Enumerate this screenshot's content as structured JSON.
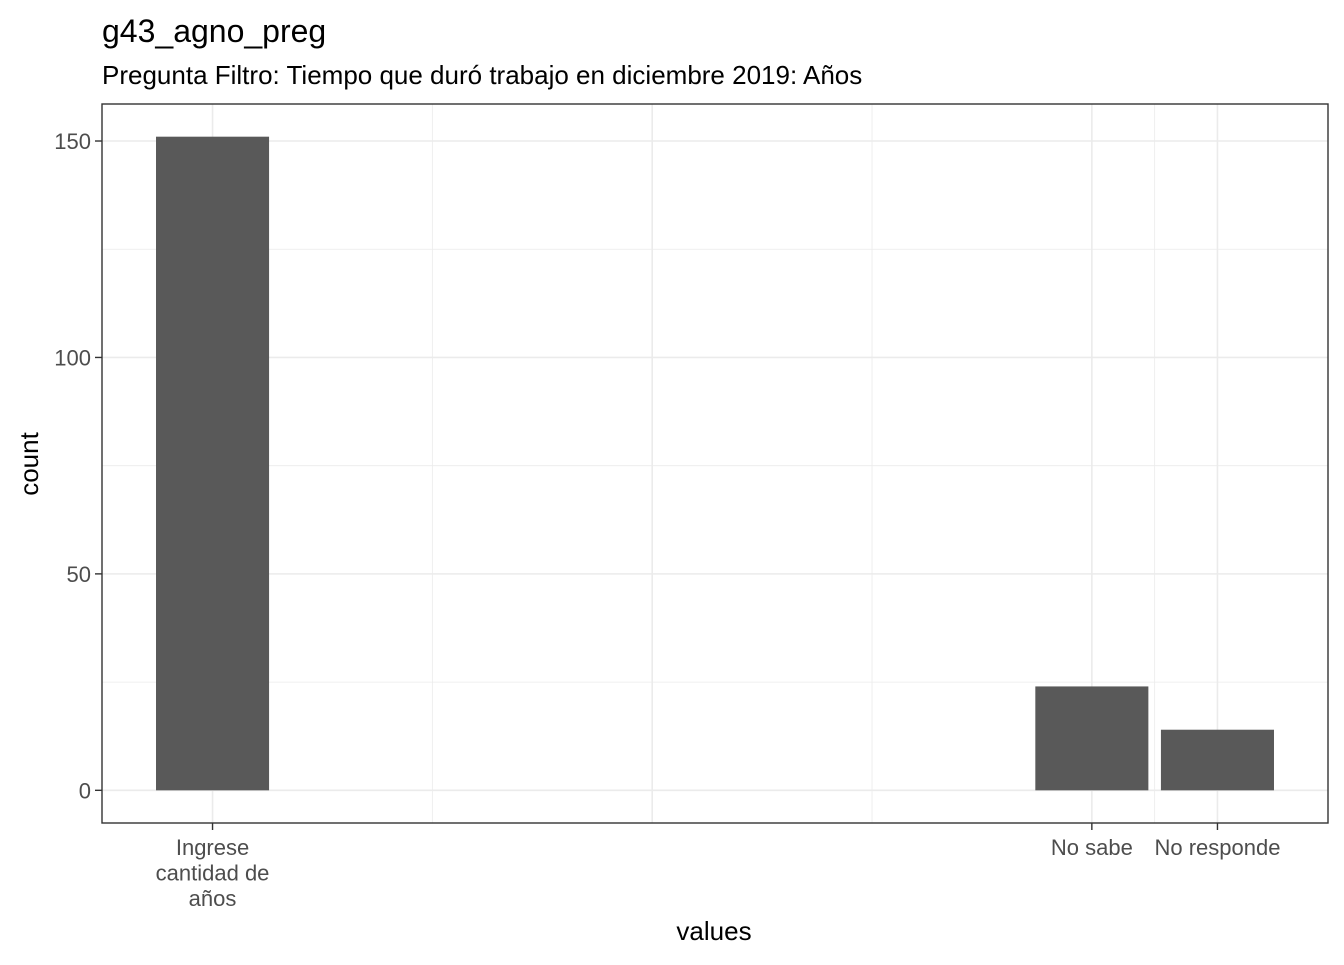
{
  "chart_data": {
    "type": "bar",
    "title": "g43_agno_preg",
    "subtitle": "Pregunta Filtro: Tiempo que duró trabajo en diciembre 2019: Años",
    "xlabel": "values",
    "ylabel": "count",
    "categories": [
      [
        "Ingrese",
        "cantidad de",
        "años"
      ],
      [
        "No sabe"
      ],
      [
        "No responde"
      ]
    ],
    "x_positions": [
      0,
      7,
      8
    ],
    "values": [
      151,
      24,
      14
    ],
    "xlim": [
      -0.88,
      8.88
    ],
    "ylim": [
      -7.55,
      158.55
    ],
    "yticks": [
      0,
      50,
      100,
      150
    ],
    "ytick_labels": [
      "0",
      "50",
      "100",
      "150"
    ],
    "x_grid_major": [
      0,
      3.5,
      7,
      8
    ],
    "x_grid_minor": [
      1.75,
      5.25,
      7.5
    ],
    "y_grid_minor": [
      25,
      75,
      125
    ],
    "bar_width": 0.9,
    "grid": true,
    "colors": {
      "bar": "#595959",
      "grid": "#ebebeb",
      "panel_border": "#333333",
      "tick_text": "#4d4d4d",
      "title": "#000000"
    }
  }
}
